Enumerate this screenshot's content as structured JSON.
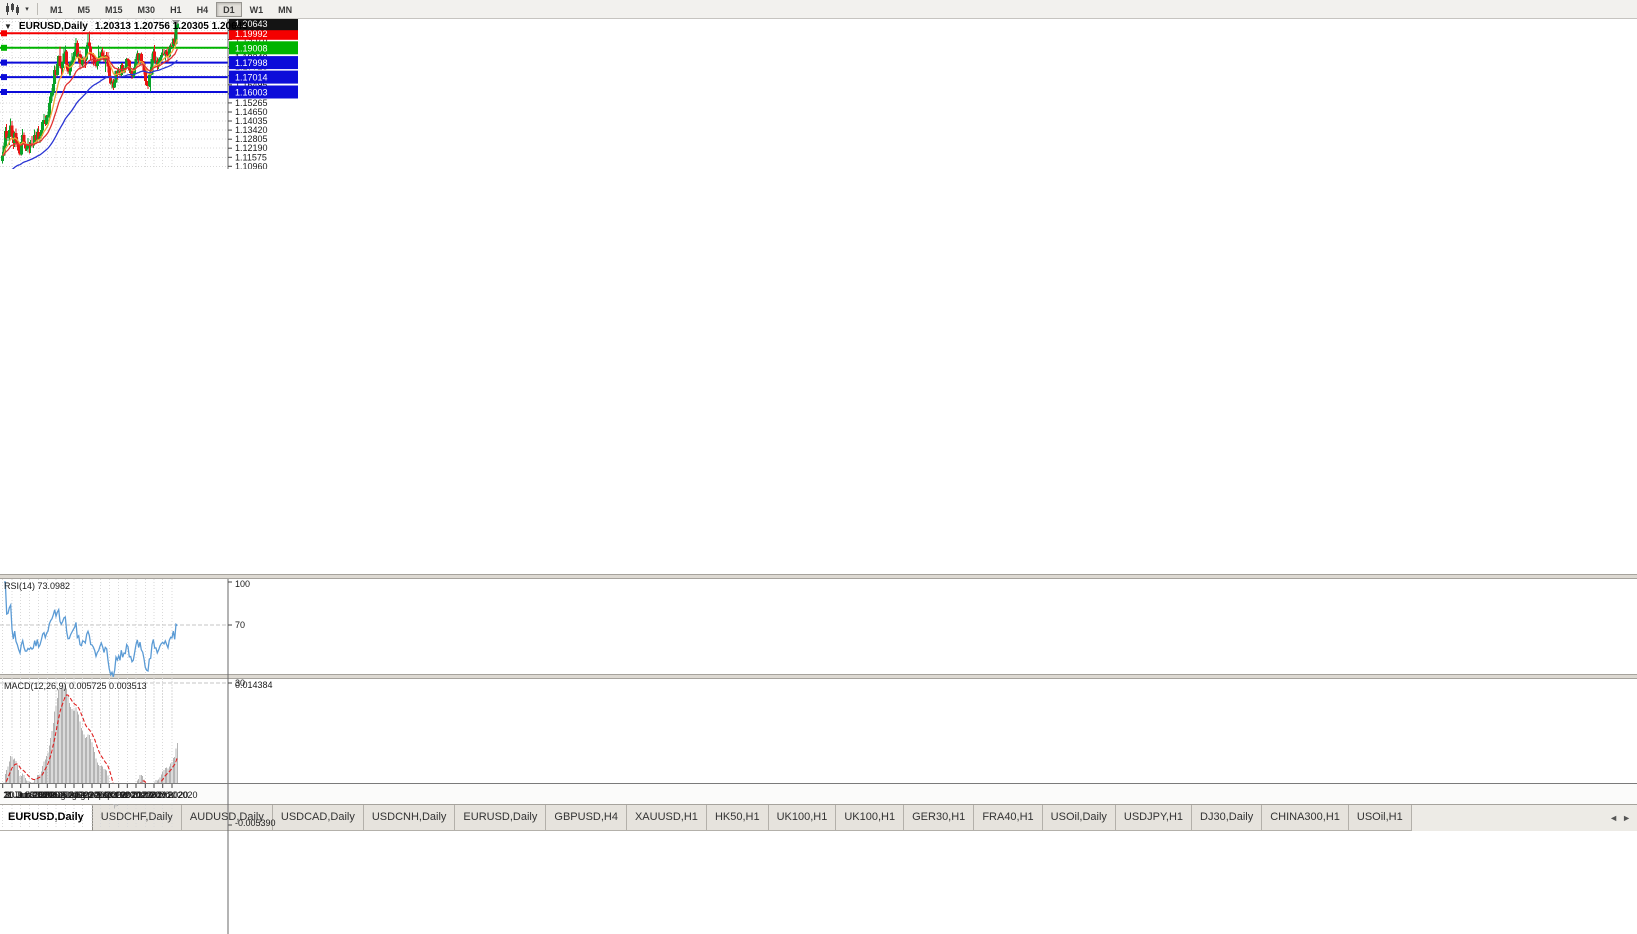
{
  "toolbar": {
    "chart_type_icon": "candlestick-chart",
    "dropdown_glyph": "▾",
    "timeframes": [
      "M1",
      "M5",
      "M15",
      "M30",
      "H1",
      "H4",
      "D1",
      "W1",
      "MN"
    ],
    "active_timeframe": "D1"
  },
  "chart_header": {
    "collapse_glyph": "▼",
    "title": "EURUSD,Daily",
    "ohlc": "1.20313 1.20756 1.20305 1.20643"
  },
  "colors": {
    "bull": "#0aa32a",
    "bear": "#e81414",
    "ma_fast": "#f0a83a",
    "ma_medium": "#e03030",
    "ma_slow": "#2a35d4",
    "hline_red": "#f40000",
    "hline_green": "#00b400",
    "hline_blue": "#0c0cd9",
    "rsi_line": "#5b9bd5",
    "macd_hist": "#b4b4b4",
    "macd_signal": "#e02020",
    "badge_current": "#141414"
  },
  "chart_data": {
    "type": "candlestick",
    "title": "EURUSD Daily",
    "symbol": "EURUSD",
    "timeframe": "Daily",
    "ohlc_display": {
      "open": "1.20313",
      "high": "1.20756",
      "low": "1.20305",
      "close": "1.20643"
    },
    "shift_ratio": 0.772,
    "price_axis": {
      "min": 1.1078,
      "max": 1.2096,
      "tick_top": 1.208,
      "tick_step": 0.00615,
      "tick_count": 17,
      "decimals": 5
    },
    "x_labels": [
      {
        "text": "2 Jun 2020",
        "i": 0
      },
      {
        "text": "11 Jun 2020",
        "i": 7
      },
      {
        "text": "20 Jun 2020",
        "i": 13.5
      },
      {
        "text": "30 Jun 2020",
        "i": 20
      },
      {
        "text": "9 Jul 2020",
        "i": 27
      },
      {
        "text": "18 Jul 2020",
        "i": 33.5
      },
      {
        "text": "28 Jul 2020",
        "i": 40
      },
      {
        "text": "6 Aug 2020",
        "i": 47
      },
      {
        "text": "15 Aug 2020",
        "i": 53.5
      },
      {
        "text": "25 Aug 2020",
        "i": 60
      },
      {
        "text": "3 Sep 2020",
        "i": 67
      },
      {
        "text": "12 Sep 2020",
        "i": 73.5
      },
      {
        "text": "22 Sep 2020",
        "i": 80
      },
      {
        "text": "1 Oct 2020",
        "i": 87
      },
      {
        "text": "10 Oct 2020",
        "i": 93.5
      },
      {
        "text": "20 Oct 2020",
        "i": 100
      },
      {
        "text": "29 Oct 2020",
        "i": 107
      },
      {
        "text": "7 Nov 2020",
        "i": 113.5
      },
      {
        "text": "17 Nov 2020",
        "i": 120
      },
      {
        "text": "26 Nov 2020",
        "i": 127
      }
    ],
    "candles": [
      [
        1.1134,
        1.1195,
        1.1116,
        1.1169
      ],
      [
        1.1169,
        1.1257,
        1.1167,
        1.1233
      ],
      [
        1.1233,
        1.1362,
        1.1195,
        1.1337
      ],
      [
        1.1337,
        1.1383,
        1.1279,
        1.1289
      ],
      [
        1.1289,
        1.132,
        1.1268,
        1.1294
      ],
      [
        1.1294,
        1.1366,
        1.124,
        1.1341
      ],
      [
        1.1341,
        1.1422,
        1.1332,
        1.1373
      ],
      [
        1.1373,
        1.1404,
        1.1277,
        1.1298
      ],
      [
        1.1298,
        1.134,
        1.1213,
        1.1256
      ],
      [
        1.1256,
        1.1333,
        1.1227,
        1.1323
      ],
      [
        1.1323,
        1.1353,
        1.1228,
        1.1264
      ],
      [
        1.1264,
        1.1295,
        1.1204,
        1.1243
      ],
      [
        1.1243,
        1.1262,
        1.1185,
        1.1205
      ],
      [
        1.1205,
        1.1253,
        1.1168,
        1.1177
      ],
      [
        1.1177,
        1.1271,
        1.1168,
        1.1261
      ],
      [
        1.1261,
        1.1349,
        1.1233,
        1.1308
      ],
      [
        1.1308,
        1.1326,
        1.1245,
        1.1251
      ],
      [
        1.1251,
        1.1264,
        1.1199,
        1.1218
      ],
      [
        1.1218,
        1.1239,
        1.12,
        1.1218
      ],
      [
        1.1218,
        1.1288,
        1.1191,
        1.1242
      ],
      [
        1.1242,
        1.1261,
        1.1184,
        1.1234
      ],
      [
        1.1234,
        1.1276,
        1.1185,
        1.1251
      ],
      [
        1.1251,
        1.1302,
        1.1223,
        1.1239
      ],
      [
        1.1239,
        1.1254,
        1.1219,
        1.1248
      ],
      [
        1.1248,
        1.1345,
        1.1241,
        1.1308
      ],
      [
        1.1308,
        1.1333,
        1.1259,
        1.1274
      ],
      [
        1.1274,
        1.1353,
        1.1265,
        1.133
      ],
      [
        1.133,
        1.1371,
        1.1275,
        1.1282
      ],
      [
        1.1282,
        1.1324,
        1.1255,
        1.13
      ],
      [
        1.13,
        1.1375,
        1.1292,
        1.1341
      ],
      [
        1.1341,
        1.1409,
        1.1325,
        1.1397
      ],
      [
        1.1397,
        1.1452,
        1.139,
        1.1411
      ],
      [
        1.1411,
        1.1442,
        1.137,
        1.1384
      ],
      [
        1.1384,
        1.1444,
        1.1378,
        1.1427
      ],
      [
        1.1427,
        1.1467,
        1.1402,
        1.1446
      ],
      [
        1.1446,
        1.154,
        1.1422,
        1.1526
      ],
      [
        1.1526,
        1.1601,
        1.1506,
        1.157
      ],
      [
        1.157,
        1.1627,
        1.154,
        1.1596
      ],
      [
        1.1596,
        1.1665,
        1.1581,
        1.1656
      ],
      [
        1.1656,
        1.1782,
        1.1647,
        1.175
      ],
      [
        1.175,
        1.1773,
        1.17,
        1.1716
      ],
      [
        1.1716,
        1.1807,
        1.1712,
        1.1791
      ],
      [
        1.1791,
        1.1848,
        1.1731,
        1.1846
      ],
      [
        1.1846,
        1.1909,
        1.1762,
        1.1778
      ],
      [
        1.1778,
        1.1797,
        1.1696,
        1.1762
      ],
      [
        1.1762,
        1.1807,
        1.172,
        1.1803
      ],
      [
        1.1803,
        1.1905,
        1.179,
        1.1863
      ],
      [
        1.1863,
        1.1916,
        1.1817,
        1.1877
      ],
      [
        1.1877,
        1.1886,
        1.1754,
        1.1787
      ],
      [
        1.1787,
        1.1798,
        1.1722,
        1.1738
      ],
      [
        1.1738,
        1.1808,
        1.1711,
        1.174
      ],
      [
        1.174,
        1.1795,
        1.1711,
        1.1785
      ],
      [
        1.1785,
        1.1865,
        1.1782,
        1.1813
      ],
      [
        1.1813,
        1.1851,
        1.1783,
        1.1842
      ],
      [
        1.1842,
        1.1882,
        1.1826,
        1.1871
      ],
      [
        1.1871,
        1.1966,
        1.1863,
        1.1934
      ],
      [
        1.1934,
        1.1951,
        1.183,
        1.1839
      ],
      [
        1.1839,
        1.1869,
        1.1801,
        1.1859
      ],
      [
        1.1859,
        1.1883,
        1.1754,
        1.1796
      ],
      [
        1.1796,
        1.1851,
        1.1782,
        1.1789
      ],
      [
        1.1789,
        1.1843,
        1.1774,
        1.1833
      ],
      [
        1.1833,
        1.1841,
        1.1763,
        1.183
      ],
      [
        1.183,
        1.1898,
        1.1763,
        1.182
      ],
      [
        1.182,
        1.192,
        1.181,
        1.1903
      ],
      [
        1.1903,
        1.1997,
        1.1898,
        1.1935
      ],
      [
        1.1935,
        1.2011,
        1.1899,
        1.1911
      ],
      [
        1.1911,
        1.1928,
        1.1822,
        1.1854
      ],
      [
        1.1854,
        1.1865,
        1.1789,
        1.1851
      ],
      [
        1.1851,
        1.1865,
        1.1781,
        1.1838
      ],
      [
        1.1838,
        1.1849,
        1.1805,
        1.1816
      ],
      [
        1.1816,
        1.1827,
        1.1766,
        1.1778
      ],
      [
        1.1778,
        1.1834,
        1.1753,
        1.1803
      ],
      [
        1.1803,
        1.1917,
        1.1788,
        1.1816
      ],
      [
        1.1816,
        1.1874,
        1.1808,
        1.1845
      ],
      [
        1.1845,
        1.1888,
        1.1839,
        1.1867
      ],
      [
        1.1867,
        1.1901,
        1.1842,
        1.1846
      ],
      [
        1.1846,
        1.1883,
        1.1805,
        1.1816
      ],
      [
        1.1816,
        1.1852,
        1.1737,
        1.1847
      ],
      [
        1.1847,
        1.1872,
        1.1827,
        1.184
      ],
      [
        1.184,
        1.1872,
        1.1732,
        1.1772
      ],
      [
        1.1772,
        1.1778,
        1.1692,
        1.1707
      ],
      [
        1.1707,
        1.1719,
        1.1651,
        1.1659
      ],
      [
        1.1659,
        1.1686,
        1.1626,
        1.1672
      ],
      [
        1.1672,
        1.1688,
        1.1615,
        1.1631
      ],
      [
        1.1631,
        1.1684,
        1.1628,
        1.1665
      ],
      [
        1.1665,
        1.1746,
        1.1662,
        1.1742
      ],
      [
        1.1742,
        1.1755,
        1.1684,
        1.1721
      ],
      [
        1.1721,
        1.1769,
        1.1717,
        1.1748
      ],
      [
        1.1748,
        1.1752,
        1.1695,
        1.1716
      ],
      [
        1.1716,
        1.1797,
        1.1705,
        1.1784
      ],
      [
        1.1784,
        1.1798,
        1.1727,
        1.1733
      ],
      [
        1.1733,
        1.1781,
        1.1725,
        1.1763
      ],
      [
        1.1763,
        1.1782,
        1.1733,
        1.176
      ],
      [
        1.176,
        1.1831,
        1.1755,
        1.1826
      ],
      [
        1.1826,
        1.183,
        1.1785,
        1.1813
      ],
      [
        1.1813,
        1.1818,
        1.1731,
        1.1745
      ],
      [
        1.1745,
        1.1772,
        1.1719,
        1.1747
      ],
      [
        1.1747,
        1.1758,
        1.1688,
        1.1709
      ],
      [
        1.1709,
        1.1747,
        1.1694,
        1.1718
      ],
      [
        1.1718,
        1.1794,
        1.1703,
        1.1768
      ],
      [
        1.1768,
        1.184,
        1.176,
        1.1824
      ],
      [
        1.1824,
        1.1881,
        1.1817,
        1.1862
      ],
      [
        1.1862,
        1.1866,
        1.1786,
        1.1816
      ],
      [
        1.1816,
        1.1864,
        1.1786,
        1.186
      ],
      [
        1.186,
        1.187,
        1.1803,
        1.181
      ],
      [
        1.181,
        1.1837,
        1.1793,
        1.1794
      ],
      [
        1.1794,
        1.1811,
        1.1718,
        1.1747
      ],
      [
        1.1747,
        1.1759,
        1.165,
        1.1674
      ],
      [
        1.1674,
        1.1704,
        1.164,
        1.1647
      ],
      [
        1.1647,
        1.1658,
        1.1622,
        1.1641
      ],
      [
        1.1641,
        1.174,
        1.1633,
        1.1715
      ],
      [
        1.1715,
        1.1771,
        1.1603,
        1.1721
      ],
      [
        1.1721,
        1.1861,
        1.1716,
        1.1826
      ],
      [
        1.1826,
        1.1893,
        1.1795,
        1.1874
      ],
      [
        1.1874,
        1.1918,
        1.1795,
        1.1814
      ],
      [
        1.1814,
        1.1843,
        1.178,
        1.1815
      ],
      [
        1.1815,
        1.1834,
        1.1745,
        1.1779
      ],
      [
        1.1779,
        1.1823,
        1.1757,
        1.1803
      ],
      [
        1.1803,
        1.1839,
        1.1799,
        1.1834
      ],
      [
        1.1834,
        1.1869,
        1.1814,
        1.1853
      ],
      [
        1.1853,
        1.1894,
        1.1849,
        1.1863
      ],
      [
        1.1863,
        1.1891,
        1.1846,
        1.1854
      ],
      [
        1.1854,
        1.1884,
        1.1815,
        1.1876
      ],
      [
        1.1876,
        1.189,
        1.1849,
        1.1857
      ],
      [
        1.1857,
        1.1906,
        1.18,
        1.184
      ],
      [
        1.184,
        1.1895,
        1.1836,
        1.1891
      ],
      [
        1.1891,
        1.1929,
        1.1881,
        1.1915
      ],
      [
        1.1915,
        1.1941,
        1.1905,
        1.1912
      ],
      [
        1.1912,
        1.1964,
        1.1901,
        1.1964
      ],
      [
        1.1964,
        1.2003,
        1.1923,
        1.1926
      ],
      [
        1.1926,
        1.2076,
        1.192,
        1.2071
      ],
      [
        1.20313,
        1.20756,
        1.20305,
        1.20643
      ]
    ],
    "moving_averages": [
      {
        "name": "ma-fast",
        "period": 9,
        "color_key": "ma_fast"
      },
      {
        "name": "ma-medium",
        "period": 21,
        "color_key": "ma_medium"
      },
      {
        "name": "ma-slow",
        "period": 55,
        "seed": 1.1,
        "color_key": "ma_slow"
      }
    ],
    "hlines": [
      {
        "value": 1.19992,
        "label": "1.19992",
        "color_key": "hline_red"
      },
      {
        "value": 1.19008,
        "label": "1.19008",
        "color_key": "hline_green"
      },
      {
        "value": 1.17998,
        "label": "1.17998",
        "color_key": "hline_blue"
      },
      {
        "value": 1.17014,
        "label": "1.17014",
        "color_key": "hline_blue"
      },
      {
        "value": 1.16003,
        "label": "1.16003",
        "color_key": "hline_blue"
      }
    ],
    "current_price": {
      "value": 1.20643,
      "label": "1.20643"
    },
    "indicators": [
      {
        "type": "rsi",
        "label": "RSI(14) 73.0982",
        "period": 14,
        "last_value": 73.0982,
        "range": [
          0,
          100
        ],
        "levels": [
          70,
          30
        ],
        "axis_labels": [
          {
            "text": "100",
            "v": 100
          },
          {
            "text": "70",
            "v": 70
          },
          {
            "text": "30",
            "v": 30
          }
        ]
      },
      {
        "type": "macd",
        "label": "MACD(12,26,9) 0.005725 0.003513",
        "params": [
          12,
          26,
          9
        ],
        "main_value": 0.005725,
        "signal_value": 0.003513,
        "range": [
          -0.00539,
          0.014384
        ],
        "axis_labels": [
          {
            "text": "0.014384",
            "v": 0.014384
          },
          {
            "text": "0.00",
            "v": 0
          },
          {
            "text": "-0.005390",
            "v": -0.00539
          }
        ]
      }
    ]
  },
  "tabs": {
    "items": [
      "EURUSD,Daily",
      "USDCHF,Daily",
      "AUDUSD,Daily",
      "USDCAD,Daily",
      "USDCNH,Daily",
      "EURUSD,Daily",
      "GBPUSD,H4",
      "XAUUSD,H1",
      "HK50,H1",
      "UK100,H1",
      "UK100,H1",
      "GER30,H1",
      "FRA40,H1",
      "USOil,Daily",
      "USDJPY,H1",
      "DJ30,Daily",
      "CHINA300,H1",
      "USOil,H1"
    ],
    "active_index": 0,
    "scroll_left_glyph": "◄",
    "scroll_right_glyph": "►"
  }
}
